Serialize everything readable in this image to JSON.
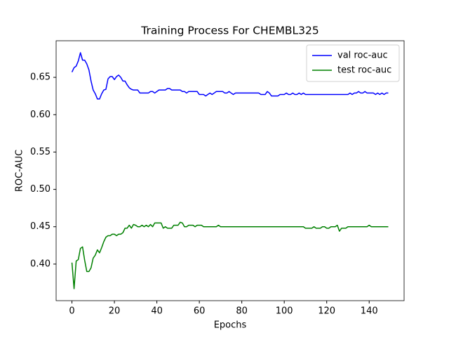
{
  "chart_data": {
    "type": "line",
    "title": "Training Process For CHEMBL325",
    "xlabel": "Epochs",
    "ylabel": "ROC-AUC",
    "x": [
      0,
      1,
      2,
      3,
      4,
      5,
      6,
      7,
      8,
      9,
      10,
      11,
      12,
      13,
      14,
      15,
      16,
      17,
      18,
      19,
      20,
      21,
      22,
      23,
      24,
      25,
      26,
      27,
      28,
      29,
      30,
      31,
      32,
      33,
      34,
      35,
      36,
      37,
      38,
      39,
      40,
      41,
      42,
      43,
      44,
      45,
      46,
      47,
      48,
      49,
      50,
      51,
      52,
      53,
      54,
      55,
      56,
      57,
      58,
      59,
      60,
      61,
      62,
      63,
      64,
      65,
      66,
      67,
      68,
      69,
      70,
      71,
      72,
      73,
      74,
      75,
      76,
      77,
      78,
      79,
      80,
      81,
      82,
      83,
      84,
      85,
      86,
      87,
      88,
      89,
      90,
      91,
      92,
      93,
      94,
      95,
      96,
      97,
      98,
      99,
      100,
      101,
      102,
      103,
      104,
      105,
      106,
      107,
      108,
      109,
      110,
      111,
      112,
      113,
      114,
      115,
      116,
      117,
      118,
      119,
      120,
      121,
      122,
      123,
      124,
      125,
      126,
      127,
      128,
      129,
      130,
      131,
      132,
      133,
      134,
      135,
      136,
      137,
      138,
      139,
      140,
      141,
      142,
      143,
      144,
      145,
      146,
      147,
      148,
      149
    ],
    "series": [
      {
        "name": "val roc-auc",
        "color": "#0000ff",
        "values": [
          0.657,
          0.663,
          0.665,
          0.672,
          0.683,
          0.673,
          0.673,
          0.668,
          0.66,
          0.645,
          0.633,
          0.628,
          0.621,
          0.621,
          0.628,
          0.633,
          0.634,
          0.648,
          0.651,
          0.651,
          0.647,
          0.651,
          0.653,
          0.65,
          0.645,
          0.645,
          0.64,
          0.636,
          0.634,
          0.633,
          0.633,
          0.633,
          0.629,
          0.629,
          0.629,
          0.629,
          0.629,
          0.631,
          0.631,
          0.629,
          0.631,
          0.633,
          0.633,
          0.633,
          0.633,
          0.635,
          0.635,
          0.633,
          0.633,
          0.633,
          0.633,
          0.633,
          0.631,
          0.631,
          0.629,
          0.631,
          0.631,
          0.631,
          0.631,
          0.631,
          0.627,
          0.627,
          0.627,
          0.625,
          0.627,
          0.629,
          0.627,
          0.629,
          0.631,
          0.631,
          0.631,
          0.631,
          0.629,
          0.629,
          0.631,
          0.629,
          0.627,
          0.629,
          0.629,
          0.629,
          0.629,
          0.629,
          0.629,
          0.629,
          0.629,
          0.629,
          0.629,
          0.629,
          0.629,
          0.627,
          0.627,
          0.627,
          0.631,
          0.629,
          0.625,
          0.625,
          0.625,
          0.625,
          0.627,
          0.627,
          0.627,
          0.629,
          0.627,
          0.627,
          0.629,
          0.627,
          0.627,
          0.629,
          0.627,
          0.629,
          0.627,
          0.627,
          0.627,
          0.627,
          0.627,
          0.627,
          0.627,
          0.627,
          0.627,
          0.627,
          0.627,
          0.627,
          0.627,
          0.627,
          0.627,
          0.627,
          0.627,
          0.627,
          0.627,
          0.627,
          0.627,
          0.629,
          0.627,
          0.629,
          0.629,
          0.631,
          0.629,
          0.629,
          0.631,
          0.629,
          0.629,
          0.629,
          0.629,
          0.627,
          0.629,
          0.627,
          0.629,
          0.627,
          0.629,
          0.629
        ]
      },
      {
        "name": "test roc-auc",
        "color": "#008000",
        "values": [
          0.402,
          0.367,
          0.404,
          0.406,
          0.421,
          0.423,
          0.405,
          0.39,
          0.39,
          0.395,
          0.408,
          0.412,
          0.419,
          0.415,
          0.422,
          0.43,
          0.436,
          0.438,
          0.438,
          0.44,
          0.44,
          0.438,
          0.44,
          0.44,
          0.442,
          0.448,
          0.448,
          0.452,
          0.448,
          0.453,
          0.452,
          0.45,
          0.45,
          0.452,
          0.45,
          0.452,
          0.45,
          0.453,
          0.45,
          0.455,
          0.455,
          0.455,
          0.455,
          0.448,
          0.45,
          0.448,
          0.448,
          0.448,
          0.452,
          0.452,
          0.452,
          0.456,
          0.455,
          0.45,
          0.45,
          0.452,
          0.452,
          0.452,
          0.45,
          0.452,
          0.452,
          0.452,
          0.45,
          0.45,
          0.45,
          0.45,
          0.45,
          0.45,
          0.45,
          0.452,
          0.45,
          0.45,
          0.45,
          0.45,
          0.45,
          0.45,
          0.45,
          0.45,
          0.45,
          0.45,
          0.45,
          0.45,
          0.45,
          0.45,
          0.45,
          0.45,
          0.45,
          0.45,
          0.45,
          0.45,
          0.45,
          0.45,
          0.45,
          0.45,
          0.45,
          0.45,
          0.45,
          0.45,
          0.45,
          0.45,
          0.45,
          0.45,
          0.45,
          0.45,
          0.45,
          0.45,
          0.45,
          0.45,
          0.45,
          0.45,
          0.448,
          0.448,
          0.448,
          0.448,
          0.45,
          0.448,
          0.448,
          0.448,
          0.45,
          0.45,
          0.448,
          0.448,
          0.45,
          0.45,
          0.45,
          0.452,
          0.444,
          0.448,
          0.448,
          0.448,
          0.45,
          0.45,
          0.45,
          0.45,
          0.45,
          0.45,
          0.45,
          0.45,
          0.45,
          0.45,
          0.452,
          0.45,
          0.45,
          0.45,
          0.45,
          0.45,
          0.45,
          0.45,
          0.45,
          0.45
        ]
      }
    ],
    "xlim": [
      -7.45,
      156.45
    ],
    "ylim": [
      0.351,
      0.699
    ],
    "xticks": [
      0,
      20,
      40,
      60,
      80,
      100,
      120,
      140
    ],
    "yticks": [
      {
        "value": 0.4,
        "label": "0.40"
      },
      0.45,
      {
        "value": 0.5,
        "label": "0.50"
      },
      0.55,
      {
        "value": 0.6,
        "label": "0.60"
      },
      0.65
    ],
    "grid": false,
    "legend": "upper right"
  }
}
